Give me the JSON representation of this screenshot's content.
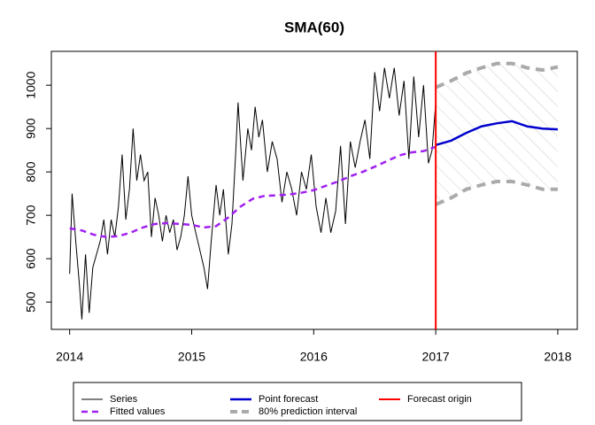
{
  "chart_data": {
    "type": "forecast",
    "title": "SMA(60)",
    "xlim": [
      2013.85,
      2018.16
    ],
    "ylim": [
      437,
      1078
    ],
    "xticks": [
      2014,
      2015,
      2016,
      2017,
      2018
    ],
    "yticks": [
      500,
      600,
      700,
      800,
      900,
      1000
    ],
    "series": [
      {
        "name": "Series",
        "color": "#000000",
        "dash": "solid",
        "x": [
          2014.0,
          2014.02,
          2014.05,
          2014.08,
          2014.1,
          2014.13,
          2014.16,
          2014.19,
          2014.22,
          2014.25,
          2014.28,
          2014.31,
          2014.34,
          2014.37,
          2014.4,
          2014.43,
          2014.46,
          2014.49,
          2014.52,
          2014.55,
          2014.58,
          2014.61,
          2014.64,
          2014.67,
          2014.7,
          2014.73,
          2014.76,
          2014.79,
          2014.82,
          2014.85,
          2014.88,
          2014.91,
          2014.94,
          2014.97,
          2015.0,
          2015.05,
          2015.1,
          2015.13,
          2015.16,
          2015.2,
          2015.23,
          2015.26,
          2015.3,
          2015.33,
          2015.36,
          2015.38,
          2015.42,
          2015.46,
          2015.49,
          2015.52,
          2015.55,
          2015.58,
          2015.62,
          2015.66,
          2015.7,
          2015.74,
          2015.78,
          2015.82,
          2015.86,
          2015.9,
          2015.94,
          2015.98,
          2016.02,
          2016.06,
          2016.1,
          2016.14,
          2016.18,
          2016.22,
          2016.26,
          2016.3,
          2016.34,
          2016.38,
          2016.42,
          2016.46,
          2016.5,
          2016.54,
          2016.58,
          2016.62,
          2016.66,
          2016.7,
          2016.74,
          2016.78,
          2016.82,
          2016.86,
          2016.9,
          2016.94,
          2016.97,
          2017.0
        ],
        "values": [
          565,
          750,
          640,
          540,
          460,
          610,
          475,
          580,
          610,
          640,
          690,
          610,
          690,
          650,
          720,
          840,
          690,
          760,
          900,
          780,
          840,
          780,
          800,
          650,
          740,
          700,
          640,
          700,
          660,
          690,
          620,
          650,
          700,
          790,
          700,
          640,
          580,
          530,
          640,
          770,
          700,
          760,
          610,
          680,
          840,
          960,
          780,
          900,
          850,
          950,
          880,
          920,
          800,
          870,
          830,
          730,
          800,
          760,
          700,
          800,
          760,
          840,
          720,
          660,
          740,
          660,
          710,
          860,
          680,
          870,
          810,
          870,
          920,
          830,
          1030,
          940,
          1040,
          970,
          1040,
          930,
          1010,
          830,
          1020,
          880,
          1000,
          820,
          850,
          960
        ]
      },
      {
        "name": "Fitted values",
        "color": "#a020f0",
        "dash": "dashed",
        "x": [
          2014.0,
          2014.1,
          2014.2,
          2014.3,
          2014.4,
          2014.5,
          2014.6,
          2014.7,
          2014.8,
          2014.9,
          2015.0,
          2015.1,
          2015.2,
          2015.3,
          2015.4,
          2015.5,
          2015.6,
          2015.7,
          2015.8,
          2015.9,
          2016.0,
          2016.1,
          2016.2,
          2016.3,
          2016.4,
          2016.5,
          2016.6,
          2016.7,
          2016.8,
          2016.9,
          2017.0
        ],
        "values": [
          670,
          665,
          655,
          650,
          652,
          660,
          672,
          680,
          682,
          680,
          678,
          672,
          675,
          695,
          720,
          738,
          745,
          746,
          748,
          752,
          758,
          768,
          778,
          790,
          800,
          812,
          825,
          838,
          845,
          848,
          858
        ]
      },
      {
        "name": "Point forecast",
        "color": "#0000cd",
        "dash": "solid",
        "x": [
          2017.0,
          2017.125,
          2017.25,
          2017.375,
          2017.5,
          2017.625,
          2017.75,
          2017.875,
          2018.0
        ],
        "values": [
          862,
          872,
          890,
          905,
          912,
          917,
          905,
          900,
          898
        ]
      }
    ],
    "interval": {
      "name": "80% prediction interval",
      "color": "#aaaaaa",
      "x": [
        2017.0,
        2017.125,
        2017.25,
        2017.375,
        2017.5,
        2017.625,
        2017.75,
        2017.875,
        2018.0
      ],
      "upper": [
        995,
        1010,
        1028,
        1040,
        1050,
        1050,
        1040,
        1035,
        1042
      ],
      "lower": [
        725,
        740,
        760,
        770,
        778,
        778,
        770,
        760,
        760
      ]
    },
    "forecast_origin": {
      "name": "Forecast origin",
      "x": 2017,
      "color": "#ff0000"
    }
  }
}
